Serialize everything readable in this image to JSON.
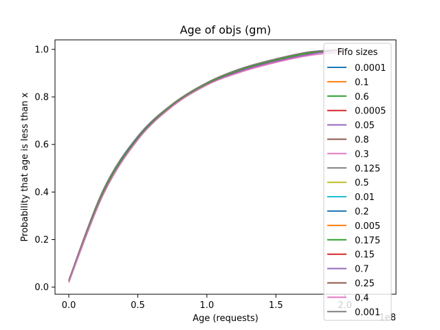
{
  "chart_data": {
    "type": "line",
    "title": "Age of objs (gm)",
    "xlabel": "Age (requests)",
    "ylabel": "Probability that age is less than x",
    "x_offset_label": "1e8",
    "xlim": [
      -0.1,
      2.37
    ],
    "ylim": [
      -0.03,
      1.04
    ],
    "xticks": [
      0.0,
      0.5,
      1.0,
      1.5,
      2.0
    ],
    "xtick_labels": [
      "0.0",
      "0.5",
      "1.0",
      "1.5",
      "2.0"
    ],
    "yticks": [
      0.0,
      0.2,
      0.4,
      0.6,
      0.8,
      1.0
    ],
    "ytick_labels": [
      "0.0",
      "0.2",
      "0.4",
      "0.6",
      "0.8",
      "1.0"
    ],
    "grid": false,
    "legend": {
      "title": "Fifo sizes",
      "placement": "top-right"
    },
    "series": [
      {
        "name": "0.0001",
        "color": "#1f77b4",
        "x": [
          0.0,
          0.25,
          0.5,
          0.75,
          1.0,
          1.25,
          1.5,
          1.75,
          2.0
        ],
        "y": [
          0.025,
          0.4,
          0.63,
          0.765,
          0.855,
          0.915,
          0.955,
          0.985,
          1.0
        ]
      },
      {
        "name": "0.1",
        "color": "#ff7f0e",
        "x": [
          0.0,
          0.25,
          0.5,
          0.75,
          1.0,
          1.25,
          1.5,
          1.75,
          2.0
        ],
        "y": [
          0.025,
          0.4,
          0.625,
          0.765,
          0.855,
          0.915,
          0.955,
          0.985,
          1.0
        ]
      },
      {
        "name": "0.6",
        "color": "#2ca02c",
        "x": [
          0.0,
          0.25,
          0.5,
          0.75,
          1.0,
          1.25,
          1.5,
          1.75,
          2.0
        ],
        "y": [
          0.025,
          0.4,
          0.625,
          0.765,
          0.855,
          0.915,
          0.955,
          0.985,
          1.0
        ]
      },
      {
        "name": "0.0005",
        "color": "#d62728",
        "x": [
          0.0,
          0.25,
          0.5,
          0.75,
          1.0,
          1.25,
          1.5,
          1.75,
          2.0
        ],
        "y": [
          0.02,
          0.39,
          0.62,
          0.76,
          0.85,
          0.91,
          0.95,
          0.98,
          1.0
        ]
      },
      {
        "name": "0.05",
        "color": "#9467bd",
        "x": [
          0.0,
          0.25,
          0.5,
          0.75,
          1.0,
          1.25,
          1.5,
          1.75,
          2.0
        ],
        "y": [
          0.02,
          0.39,
          0.62,
          0.76,
          0.85,
          0.91,
          0.95,
          0.98,
          1.0
        ]
      },
      {
        "name": "0.8",
        "color": "#8c564b",
        "x": [
          0.0,
          0.25,
          0.5,
          0.75,
          1.0,
          1.25,
          1.5,
          1.75,
          2.0
        ],
        "y": [
          0.03,
          0.41,
          0.635,
          0.77,
          0.86,
          0.92,
          0.96,
          0.99,
          1.0
        ]
      },
      {
        "name": "0.3",
        "color": "#e377c2",
        "x": [
          0.0,
          0.25,
          0.5,
          0.75,
          1.0,
          1.25,
          1.5,
          1.75,
          2.0
        ],
        "y": [
          0.02,
          0.39,
          0.62,
          0.76,
          0.85,
          0.905,
          0.945,
          0.975,
          0.99
        ]
      },
      {
        "name": "0.125",
        "color": "#7f7f7f",
        "x": [
          0.0,
          0.25,
          0.5,
          0.75,
          1.0,
          1.25,
          1.5,
          1.75,
          2.0
        ],
        "y": [
          0.03,
          0.41,
          0.635,
          0.77,
          0.86,
          0.92,
          0.96,
          0.99,
          1.0
        ]
      },
      {
        "name": "0.5",
        "color": "#bcbd22",
        "x": [
          0.0,
          0.25,
          0.5,
          0.75,
          1.0,
          1.25,
          1.5,
          1.75,
          2.0
        ],
        "y": [
          0.025,
          0.4,
          0.63,
          0.765,
          0.855,
          0.915,
          0.955,
          0.985,
          1.0
        ]
      },
      {
        "name": "0.01",
        "color": "#17becf",
        "x": [
          0.0,
          0.25,
          0.5,
          0.75,
          1.0,
          1.25,
          1.5,
          1.75,
          2.0
        ],
        "y": [
          0.025,
          0.4,
          0.63,
          0.765,
          0.855,
          0.915,
          0.955,
          0.985,
          1.0
        ]
      },
      {
        "name": "0.2",
        "color": "#1f77b4",
        "x": [
          0.0,
          0.25,
          0.5,
          0.75,
          1.0,
          1.25,
          1.5,
          1.75,
          2.0
        ],
        "y": [
          0.025,
          0.4,
          0.63,
          0.765,
          0.855,
          0.915,
          0.955,
          0.985,
          1.0
        ]
      },
      {
        "name": "0.005",
        "color": "#ff7f0e",
        "x": [
          0.0,
          0.25,
          0.5,
          0.75,
          1.0,
          1.25,
          1.5,
          1.75,
          2.0
        ],
        "y": [
          0.025,
          0.4,
          0.625,
          0.765,
          0.855,
          0.915,
          0.955,
          0.985,
          1.0
        ]
      },
      {
        "name": "0.175",
        "color": "#2ca02c",
        "x": [
          0.0,
          0.25,
          0.5,
          0.75,
          1.0,
          1.25,
          1.5,
          1.75,
          2.0
        ],
        "y": [
          0.025,
          0.4,
          0.625,
          0.765,
          0.855,
          0.915,
          0.955,
          0.985,
          1.0
        ]
      },
      {
        "name": "0.15",
        "color": "#d62728",
        "x": [
          0.0,
          0.25,
          0.5,
          0.75,
          1.0,
          1.25,
          1.5,
          1.75,
          2.0
        ],
        "y": [
          0.02,
          0.39,
          0.62,
          0.76,
          0.85,
          0.91,
          0.95,
          0.98,
          1.0
        ]
      },
      {
        "name": "0.7",
        "color": "#9467bd",
        "x": [
          0.0,
          0.25,
          0.5,
          0.75,
          1.0,
          1.25,
          1.5,
          1.75,
          2.0
        ],
        "y": [
          0.02,
          0.39,
          0.62,
          0.76,
          0.85,
          0.91,
          0.95,
          0.98,
          1.0
        ]
      },
      {
        "name": "0.25",
        "color": "#8c564b",
        "x": [
          0.0,
          0.25,
          0.5,
          0.75,
          1.0,
          1.25,
          1.5,
          1.75,
          2.0
        ],
        "y": [
          0.03,
          0.41,
          0.635,
          0.77,
          0.86,
          0.92,
          0.96,
          0.99,
          1.0
        ]
      },
      {
        "name": "0.4",
        "color": "#e377c2",
        "x": [
          0.0,
          0.25,
          0.5,
          0.75,
          1.0,
          1.25,
          1.5,
          1.75,
          2.0
        ],
        "y": [
          0.02,
          0.39,
          0.62,
          0.76,
          0.85,
          0.905,
          0.945,
          0.975,
          0.99
        ]
      },
      {
        "name": "0.001",
        "color": "#7f7f7f",
        "x": [
          0.0,
          0.25,
          0.5,
          0.75,
          1.0,
          1.25,
          1.5,
          1.75,
          2.0
        ],
        "y": [
          0.03,
          0.41,
          0.635,
          0.77,
          0.86,
          0.92,
          0.96,
          0.99,
          1.0
        ]
      }
    ]
  }
}
